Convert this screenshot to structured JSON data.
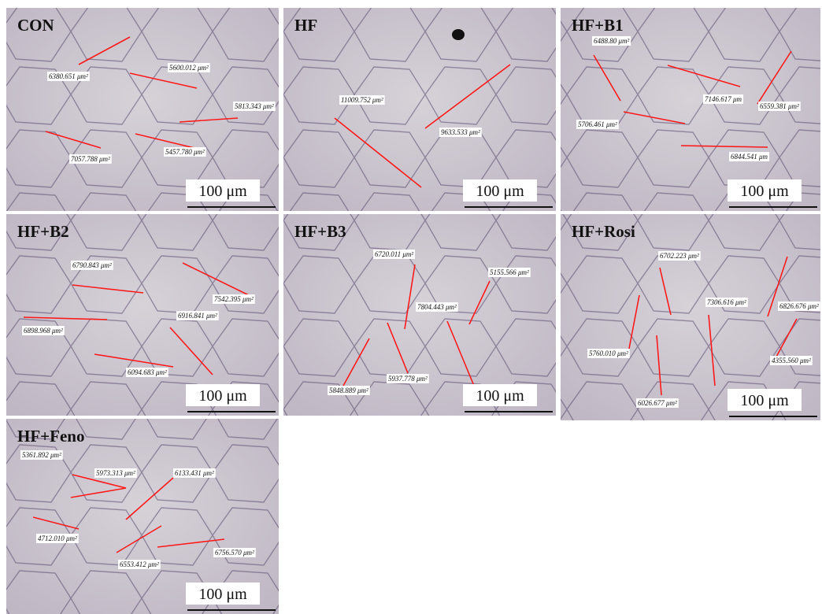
{
  "panels": [
    {
      "title": "CON",
      "measurements": [
        "6380.651 μm²",
        "5600.012 μm²",
        "5813.343 μm²",
        "7057.788 μm²",
        "5457.780 μm²"
      ],
      "scale_bar": "100 μm"
    },
    {
      "title": "HF",
      "measurements": [
        "11009.752 μm²",
        "9633.533 μm²"
      ],
      "scale_bar": "100 μm"
    },
    {
      "title": "HF+B1",
      "measurements": [
        "6488.80 μm²",
        "7146.617 μm",
        "6559.381 μm²",
        "5706.461 μm²",
        "6844.541 μm"
      ],
      "scale_bar": "100 μm"
    },
    {
      "title": "HF+B2",
      "measurements": [
        "6790.843 μm²",
        "7542.395 μm²",
        "6916.841 μm²",
        "6898.968 μm²",
        "6094.683 μm²"
      ],
      "scale_bar": "100 μm"
    },
    {
      "title": "HF+B3",
      "measurements": [
        "6720.011 μm²",
        "5155.566 μm²",
        "7804.443 μm²",
        "5848.889 μm²",
        "5937.778 μm²"
      ],
      "scale_bar": "100 μm"
    },
    {
      "title": "HF+Rosi",
      "measurements": [
        "6702.223 μm²",
        "7306.616 μm²",
        "6826.676 μm²",
        "5760.010 μm²",
        "4355.560 μm²",
        "6026.677 μm²"
      ],
      "scale_bar": "100 μm"
    },
    {
      "title": "HF+Feno",
      "measurements": [
        "5361.892 μm²",
        "5973.313 μm²",
        "6133.431 μm²",
        "4712.010 μm²",
        "6553.412 μm²",
        "6756.570 μm²"
      ],
      "scale_bar": "100 μm"
    }
  ]
}
